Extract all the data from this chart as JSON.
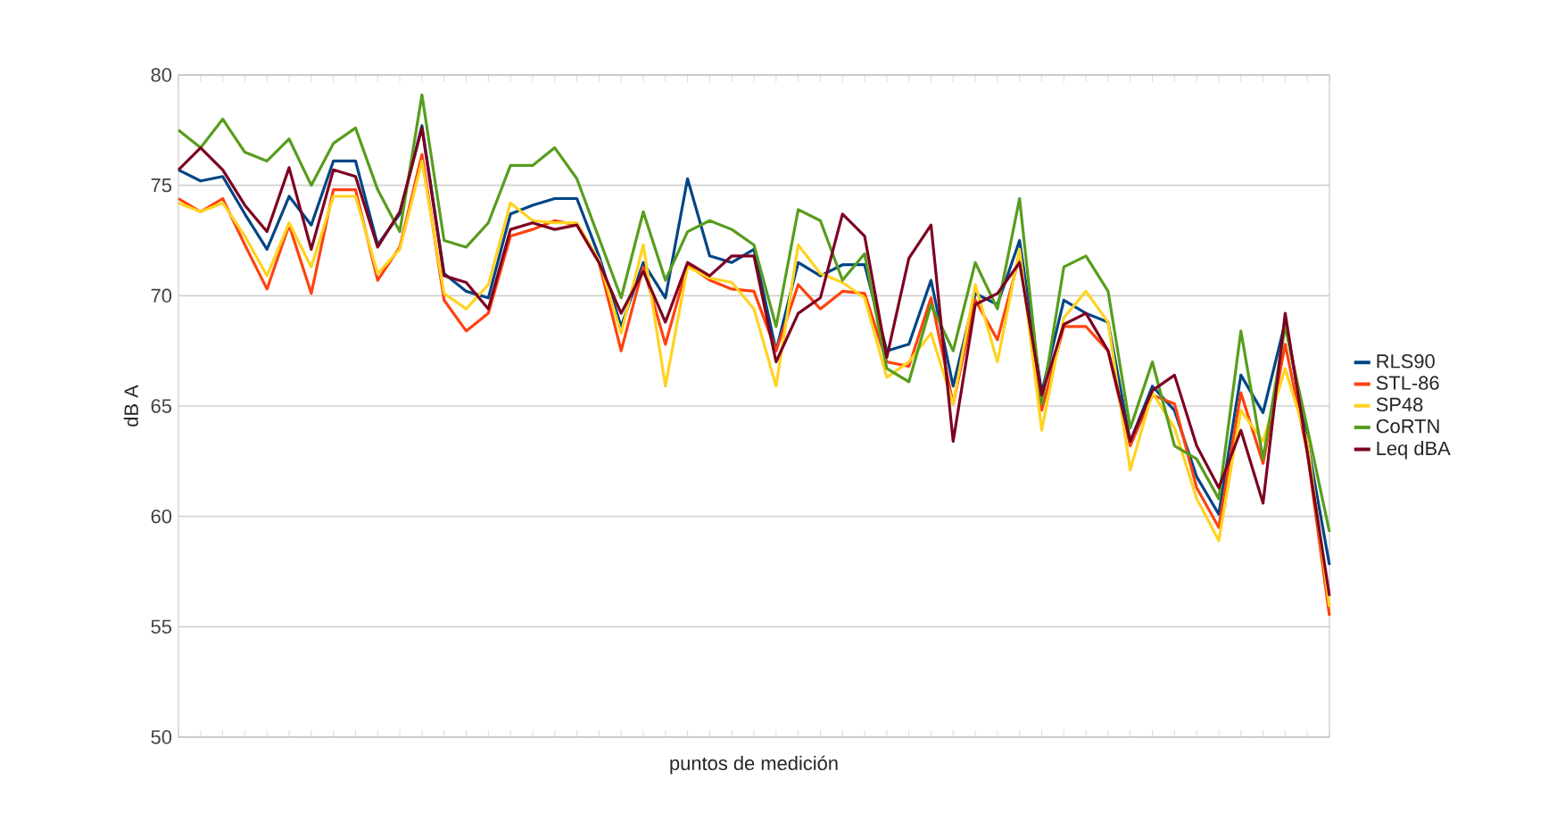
{
  "chart_data": {
    "type": "line",
    "xlabel": "puntos de medición",
    "ylabel": "dB A",
    "categories": [
      null,
      null,
      null,
      null,
      null,
      null,
      null,
      null,
      null,
      null,
      null,
      null,
      null,
      null,
      null,
      null,
      null,
      null,
      null,
      null,
      null,
      null,
      null,
      null,
      null,
      null,
      null,
      null,
      null,
      null,
      null,
      null,
      null,
      null,
      null,
      null,
      null,
      null,
      null,
      null,
      null,
      null,
      null,
      null,
      null,
      null,
      null,
      null,
      null,
      null,
      null,
      null,
      null
    ],
    "ylim": [
      50,
      80
    ],
    "yticks": [
      50,
      55,
      60,
      65,
      70,
      75,
      80
    ],
    "grid": "y",
    "legend": "right",
    "tick_labels": "y",
    "series": [
      {
        "name": "RLS90",
        "color": "#004586",
        "values": [
          75.7,
          75.2,
          75.4,
          73.7,
          72.1,
          74.5,
          73.2,
          76.1,
          76.1,
          72.3,
          73.7,
          77.7,
          71.0,
          70.2,
          69.9,
          73.7,
          74.1,
          74.4,
          74.4,
          71.8,
          68.6,
          71.5,
          69.9,
          75.3,
          71.8,
          71.5,
          72.1,
          67.5,
          71.5,
          70.9,
          71.4,
          71.4,
          67.5,
          67.8,
          70.7,
          65.9,
          70.1,
          69.6,
          72.5,
          65.6,
          69.8,
          69.2,
          68.8,
          63.4,
          65.9,
          64.8,
          61.8,
          60.1,
          66.4,
          64.7,
          68.8,
          63.4,
          57.8
        ]
      },
      {
        "name": "STL-86",
        "color": "#ff420e",
        "values": [
          74.4,
          73.8,
          74.4,
          72.3,
          70.3,
          73.2,
          70.1,
          74.8,
          74.8,
          70.7,
          72.2,
          76.4,
          69.8,
          68.4,
          69.2,
          72.7,
          73.0,
          73.4,
          73.2,
          71.5,
          67.5,
          71.3,
          67.8,
          71.4,
          70.7,
          70.3,
          70.2,
          67.5,
          70.5,
          69.4,
          70.2,
          70.1,
          67.0,
          66.8,
          69.9,
          65.1,
          69.8,
          68.0,
          71.8,
          64.8,
          68.6,
          68.6,
          67.5,
          63.2,
          65.5,
          65.1,
          61.3,
          59.5,
          65.6,
          62.4,
          67.8,
          62.9,
          55.5
        ]
      },
      {
        "name": "SP48",
        "color": "#ffd320",
        "values": [
          74.2,
          73.8,
          74.2,
          72.7,
          70.9,
          73.3,
          71.3,
          74.5,
          74.5,
          71.0,
          72.1,
          76.1,
          70.1,
          69.4,
          70.5,
          74.2,
          73.4,
          73.3,
          73.3,
          71.6,
          68.3,
          72.3,
          65.9,
          71.3,
          70.8,
          70.6,
          69.4,
          65.9,
          72.3,
          71.0,
          70.6,
          69.9,
          66.3,
          67.0,
          68.3,
          65.1,
          70.5,
          67.0,
          72.1,
          63.9,
          69.0,
          70.2,
          68.8,
          62.1,
          65.6,
          64.0,
          60.8,
          58.9,
          64.8,
          63.4,
          66.7,
          63.4,
          55.9
        ]
      },
      {
        "name": "CoRTN",
        "color": "#579d1c",
        "values": [
          77.5,
          76.7,
          78.0,
          76.5,
          76.1,
          77.1,
          75.0,
          76.9,
          77.6,
          74.8,
          72.9,
          79.1,
          72.5,
          72.2,
          73.3,
          75.9,
          75.9,
          76.7,
          75.3,
          72.6,
          69.9,
          73.8,
          70.7,
          72.9,
          73.4,
          73.0,
          72.3,
          68.6,
          73.9,
          73.4,
          70.7,
          71.9,
          66.7,
          66.1,
          69.6,
          67.5,
          71.5,
          69.4,
          74.4,
          65.1,
          71.3,
          71.8,
          70.2,
          64.0,
          67.0,
          63.2,
          62.6,
          60.8,
          68.4,
          62.6,
          68.6,
          64.0,
          59.3
        ]
      },
      {
        "name": "Leq dBA",
        "color": "#7e0021",
        "values": [
          75.7,
          76.7,
          75.7,
          74.1,
          72.9,
          75.8,
          72.1,
          75.7,
          75.4,
          72.2,
          73.8,
          77.6,
          70.9,
          70.6,
          69.4,
          73.0,
          73.3,
          73.0,
          73.2,
          71.5,
          69.2,
          71.1,
          68.8,
          71.5,
          70.9,
          71.8,
          71.8,
          67.0,
          69.2,
          69.9,
          73.7,
          72.7,
          67.2,
          71.7,
          73.2,
          63.4,
          69.6,
          70.1,
          71.5,
          65.5,
          68.7,
          69.2,
          67.5,
          63.4,
          65.7,
          66.4,
          63.2,
          61.3,
          63.9,
          60.6,
          69.2,
          62.9,
          56.4
        ]
      }
    ]
  }
}
